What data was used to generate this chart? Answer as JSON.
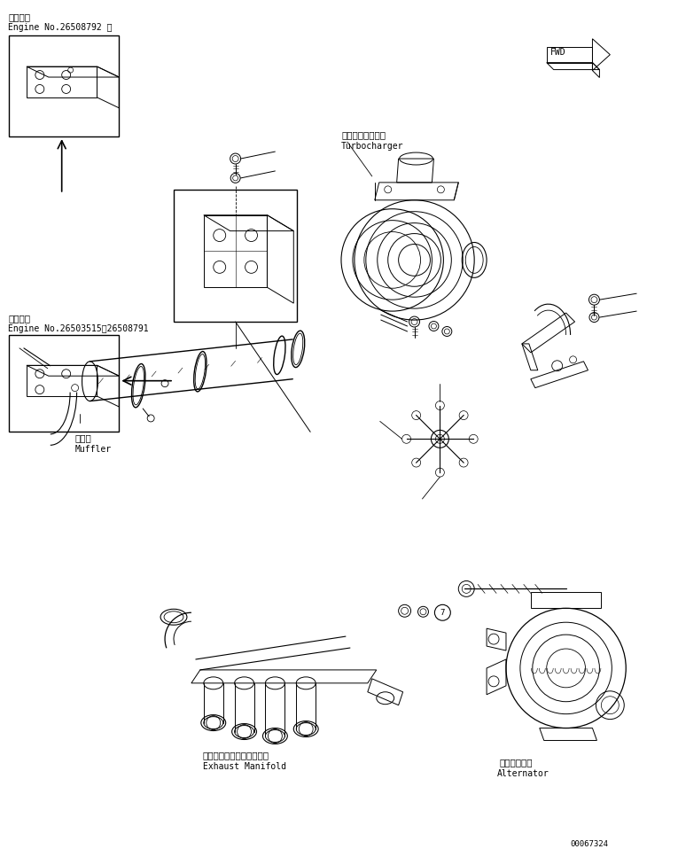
{
  "bg_color": "#ffffff",
  "line_color": "#000000",
  "fig_width": 7.65,
  "fig_height": 9.58,
  "dpi": 100,
  "title_top_jp": "通用号機",
  "title_top_en": "Engine No.26508792 ～",
  "title_bottom_jp": "適用号機",
  "title_bottom_en": "Engine No.26503515～26508791",
  "label_turbocharger_jp": "ターボチャージャ",
  "label_turbocharger_en": "Turbocharger",
  "label_muffler_jp": "マフラ",
  "label_muffler_en": "Muffler",
  "label_exhaust_jp": "エキゾーストマニホールド",
  "label_exhaust_en": "Exhaust Manifold",
  "label_alternator_jp": "オルタネータ",
  "label_alternator_en": "Alternator",
  "doc_number": "00067324"
}
